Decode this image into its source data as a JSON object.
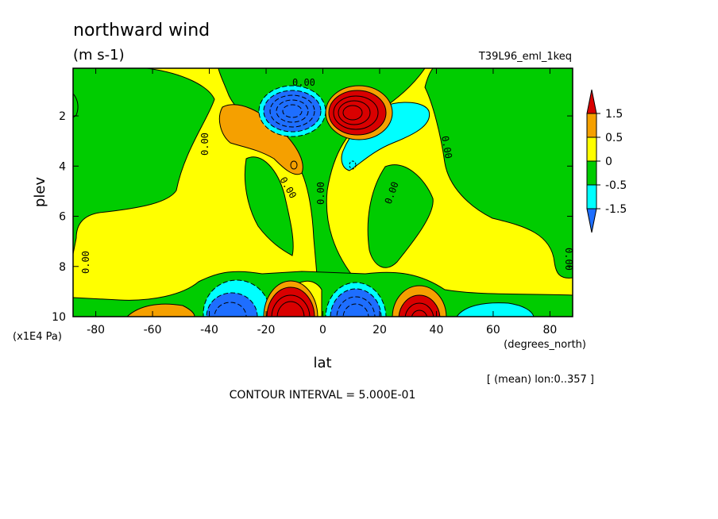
{
  "chart_data": {
    "type": "contour",
    "title": "northward wind",
    "units": "(m s-1)",
    "run_label": "T39L96_eml_1keq",
    "xlabel": "lat",
    "x_units": "(degrees_north)",
    "ylabel": "plev",
    "y_units": "(x1E4 Pa)",
    "x_ticks": [
      -80,
      -60,
      -40,
      -20,
      0,
      20,
      40,
      60,
      80
    ],
    "x_tick_labels": [
      "-80",
      "-60",
      "-40",
      "-20",
      "0",
      "20",
      "40",
      "60",
      "80"
    ],
    "y_ticks": [
      2,
      4,
      6,
      8,
      10
    ],
    "y_tick_labels": [
      "2",
      "4",
      "6",
      "8",
      "10"
    ],
    "xlim": [
      -88,
      88
    ],
    "ylim": [
      0.1,
      10
    ],
    "y_inverted": true,
    "colorbar": {
      "labels": [
        "1.5",
        "0.5",
        "0",
        "-0.5",
        "-1.5"
      ],
      "colors": [
        "#d90000",
        "#f5a000",
        "#ffff00",
        "#00cc00",
        "#00ffff",
        "#1e6eff"
      ]
    },
    "contour_labels": [
      "0.00"
    ],
    "contour_interval": "CONTOUR INTERVAL = 5.000E-01",
    "averaging_note": "[ (mean) lon:0..357 ]",
    "features": [
      {
        "kind": "min",
        "lat": -12,
        "plev": 2.0,
        "value": -1.5
      },
      {
        "kind": "max",
        "lat": 10,
        "plev": 2.0,
        "value": 1.5
      },
      {
        "kind": "min",
        "lat": -33,
        "plev": 9.5,
        "value": -1.5
      },
      {
        "kind": "max",
        "lat": -12,
        "plev": 9.5,
        "value": 1.5
      },
      {
        "kind": "min",
        "lat": 10,
        "plev": 9.5,
        "value": -1.5
      },
      {
        "kind": "max",
        "lat": 32,
        "plev": 9.5,
        "value": 1.5
      }
    ]
  }
}
